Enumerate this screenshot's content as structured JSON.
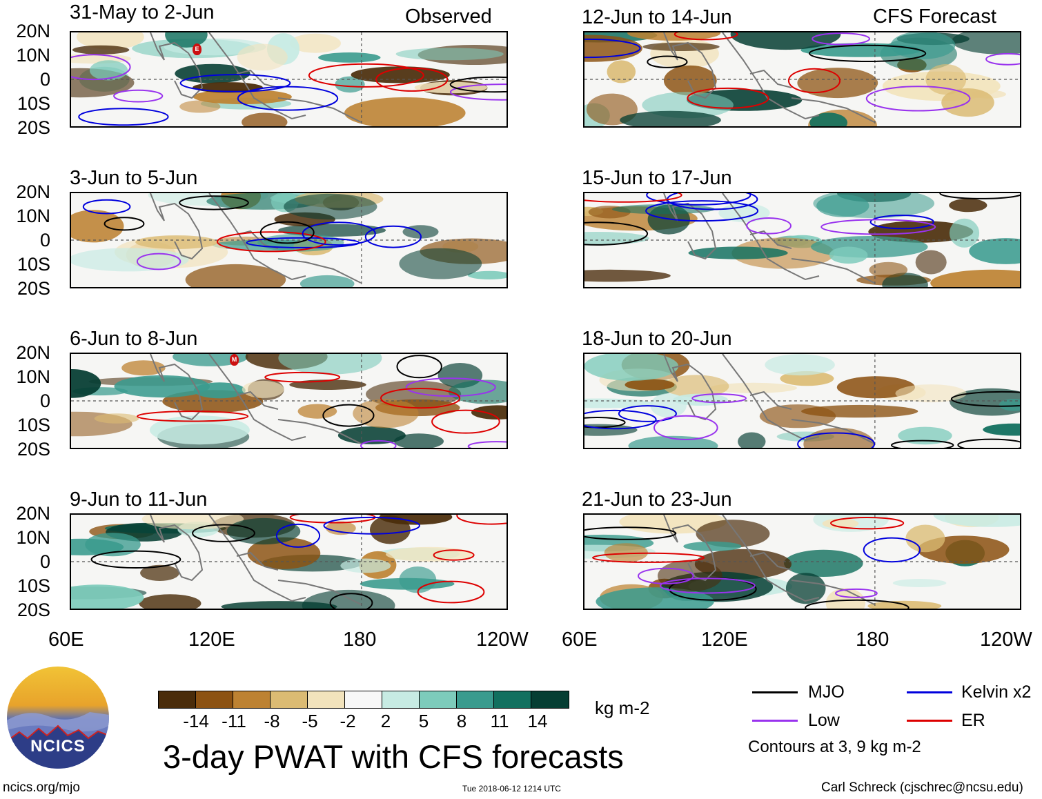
{
  "headers": {
    "observed": "Observed",
    "forecast": "CFS Forecast"
  },
  "left_panels": [
    {
      "title": "31-May to 2-Jun"
    },
    {
      "title": "3-Jun to 5-Jun"
    },
    {
      "title": "6-Jun to 8-Jun"
    },
    {
      "title": "9-Jun to 11-Jun"
    }
  ],
  "right_panels": [
    {
      "title": "12-Jun to 14-Jun"
    },
    {
      "title": "15-Jun to 17-Jun"
    },
    {
      "title": "18-Jun to 20-Jun"
    },
    {
      "title": "21-Jun to 23-Jun"
    }
  ],
  "y_labels": [
    "20N",
    "10N",
    "0",
    "10S",
    "20S"
  ],
  "x_labels": [
    "60E",
    "120E",
    "180",
    "120W"
  ],
  "phase_markers": [
    "E",
    "M"
  ],
  "colorbar": {
    "colors": [
      "#4a2c0a",
      "#8c5212",
      "#bd8232",
      "#dbbb73",
      "#f2e3bc",
      "#f7f7f7",
      "#c7ebe3",
      "#7dcbbb",
      "#3a9b8e",
      "#12705f",
      "#063e33"
    ],
    "labels": [
      "-14",
      "-11",
      "-8",
      "-5",
      "-2",
      "2",
      "5",
      "8",
      "11",
      "14"
    ],
    "units": "kg m-2"
  },
  "legend": {
    "items": [
      {
        "label": "MJO",
        "color": "#000000"
      },
      {
        "label": "Kelvin x2",
        "color": "#0000dd"
      },
      {
        "label": "Low",
        "color": "#9933ee"
      },
      {
        "label": "ER",
        "color": "#dd0000"
      }
    ],
    "note": "Contours at 3, 9 kg m-2"
  },
  "main_title": "3-day PWAT with CFS forecasts",
  "logo_text": "NCICS",
  "footer": {
    "url": "ncics.org/mjo",
    "timestamp": "Tue 2018-06-12 1214 UTC",
    "credit": "Carl Schreck (cjschrec@ncsu.edu)"
  }
}
